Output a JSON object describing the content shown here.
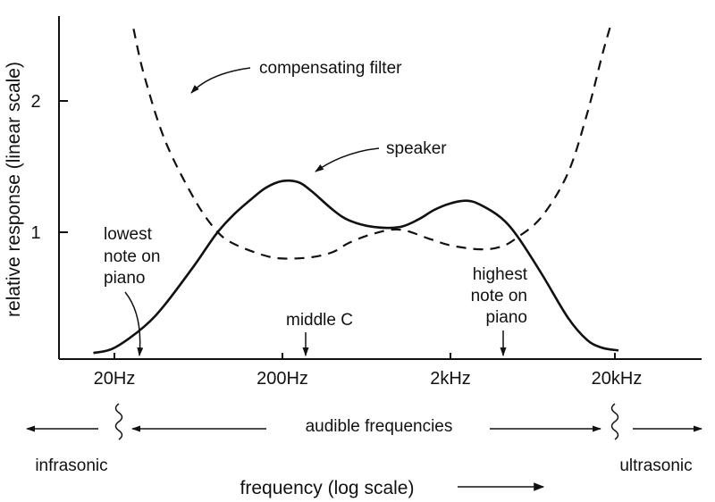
{
  "chart_data": {
    "type": "line",
    "xlabel": "frequency (log scale)",
    "ylabel": "relative response (linear scale)",
    "x_scale": "log",
    "x_ticks": [
      {
        "value": 20,
        "label": "20Hz"
      },
      {
        "value": 200,
        "label": "200Hz"
      },
      {
        "value": 2000,
        "label": "2kHz"
      },
      {
        "value": 20000,
        "label": "20kHz"
      }
    ],
    "y_ticks": [
      {
        "value": 1,
        "label": "1"
      },
      {
        "value": 2,
        "label": "2"
      }
    ],
    "xlim": [
      10,
      80000
    ],
    "ylim": [
      0.06,
      2.6
    ],
    "grid": false,
    "series": [
      {
        "name": "speaker",
        "style": "solid",
        "color": "#111111",
        "points": [
          [
            15,
            0.08
          ],
          [
            20,
            0.12
          ],
          [
            30,
            0.28
          ],
          [
            40,
            0.45
          ],
          [
            60,
            0.75
          ],
          [
            80,
            0.98
          ],
          [
            100,
            1.12
          ],
          [
            130,
            1.25
          ],
          [
            160,
            1.34
          ],
          [
            200,
            1.39
          ],
          [
            250,
            1.38
          ],
          [
            300,
            1.31
          ],
          [
            400,
            1.17
          ],
          [
            500,
            1.09
          ],
          [
            700,
            1.04
          ],
          [
            1000,
            1.04
          ],
          [
            1300,
            1.1
          ],
          [
            1600,
            1.17
          ],
          [
            2000,
            1.22
          ],
          [
            2500,
            1.24
          ],
          [
            3000,
            1.21
          ],
          [
            4000,
            1.11
          ],
          [
            5000,
            0.97
          ],
          [
            7000,
            0.68
          ],
          [
            10000,
            0.35
          ],
          [
            13000,
            0.18
          ],
          [
            16000,
            0.12
          ],
          [
            20000,
            0.1
          ]
        ]
      },
      {
        "name": "compensating filter",
        "style": "dashed",
        "color": "#111111",
        "points": [
          [
            26,
            2.55
          ],
          [
            30,
            2.2
          ],
          [
            40,
            1.7
          ],
          [
            60,
            1.25
          ],
          [
            80,
            1.02
          ],
          [
            100,
            0.92
          ],
          [
            150,
            0.83
          ],
          [
            200,
            0.8
          ],
          [
            300,
            0.81
          ],
          [
            400,
            0.85
          ],
          [
            500,
            0.92
          ],
          [
            700,
            0.99
          ],
          [
            1000,
            1.02
          ],
          [
            1500,
            0.95
          ],
          [
            2000,
            0.9
          ],
          [
            3000,
            0.87
          ],
          [
            4000,
            0.89
          ],
          [
            5000,
            0.96
          ],
          [
            7000,
            1.12
          ],
          [
            10000,
            1.45
          ],
          [
            13000,
            1.9
          ],
          [
            16000,
            2.35
          ],
          [
            18000,
            2.58
          ]
        ]
      }
    ],
    "annotations": [
      {
        "text": "compensating filter",
        "points_to": "compensating filter"
      },
      {
        "text": "speaker",
        "points_to": "speaker"
      },
      {
        "lines": [
          "lowest",
          "note on",
          "piano"
        ],
        "at_frequency": 27.5
      },
      {
        "text": "middle C",
        "at_frequency": 261.6
      },
      {
        "lines": [
          "highest",
          "note on",
          "piano"
        ],
        "at_frequency": 4186
      }
    ],
    "bands": [
      {
        "label": "infrasonic",
        "below_frequency": 20
      },
      {
        "label": "audible frequencies",
        "from_frequency": 20,
        "to_frequency": 20000
      },
      {
        "label": "ultrasonic",
        "above_frequency": 20000
      }
    ]
  }
}
